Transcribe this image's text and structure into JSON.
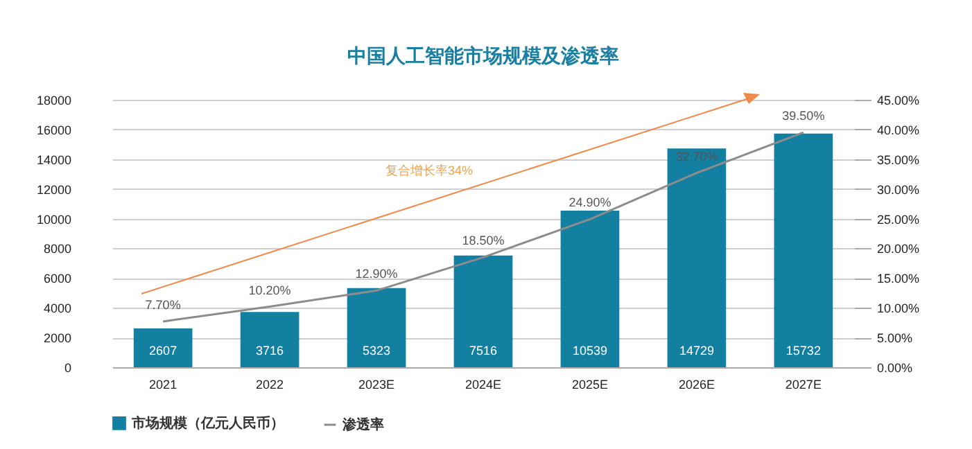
{
  "chart_data": {
    "type": "bar",
    "title": "中国人工智能市场规模及渗透率",
    "categories": [
      "2021",
      "2022",
      "2023E",
      "2024E",
      "2025E",
      "2026E",
      "2027E"
    ],
    "series": [
      {
        "name": "市场规模（亿元人民币）",
        "color": "#137fa1",
        "values": [
          2607,
          3716,
          5323,
          7516,
          10539,
          14729,
          15732
        ]
      },
      {
        "name": "渗透率",
        "type": "line",
        "axis": "y2",
        "color": "#8c8c8c",
        "values": [
          7.7,
          10.2,
          12.9,
          18.5,
          24.9,
          32.7,
          39.5
        ],
        "value_labels": [
          "7.70%",
          "10.20%",
          "12.90%",
          "18.50%",
          "24.90%",
          "32.70%",
          "39.50%"
        ]
      }
    ],
    "data_labels": true,
    "ylim": [
      0,
      18000
    ],
    "yticks": [
      0,
      2000,
      4000,
      6000,
      8000,
      10000,
      12000,
      14000,
      16000,
      18000
    ],
    "y2lim": [
      0,
      45
    ],
    "y2ticks": [
      {
        "value": 0,
        "label": "0.00%"
      },
      {
        "value": 5,
        "label": "5.00%"
      },
      {
        "value": 10,
        "label": "10.00%"
      },
      {
        "value": 15,
        "label": "15.00%"
      },
      {
        "value": 20,
        "label": "20.00%"
      },
      {
        "value": 25,
        "label": "25.00%"
      },
      {
        "value": 30,
        "label": "30.00%"
      },
      {
        "value": 35,
        "label": "35.00%"
      },
      {
        "value": 40,
        "label": "40.00%"
      },
      {
        "value": 45,
        "label": "45.00%"
      }
    ],
    "grid": "y",
    "legend": "bottom",
    "annotations": [
      "复合增长率34%"
    ]
  }
}
